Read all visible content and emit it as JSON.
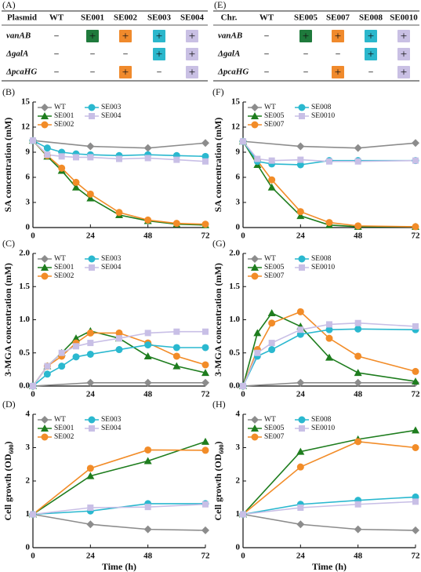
{
  "tables": [
    {
      "label": "(A)",
      "columns": [
        "Plasmid",
        "WT",
        "SE001",
        "SE002",
        "SE003",
        "SE004"
      ],
      "rows": [
        [
          "vanAB",
          "–",
          {
            "text": "+",
            "color": "#1f7a3c"
          },
          {
            "text": "+",
            "color": "#f08a2c"
          },
          {
            "text": "+",
            "color": "#2bb7cc"
          },
          {
            "text": "+",
            "color": "#c9c0e4"
          }
        ],
        [
          "ΔgalA",
          "–",
          "–",
          "–",
          {
            "text": "+",
            "color": "#2bb7cc"
          },
          {
            "text": "+",
            "color": "#c9c0e4"
          }
        ],
        [
          "ΔpcaHG",
          "–",
          "–",
          {
            "text": "+",
            "color": "#f08a2c"
          },
          "–",
          {
            "text": "+",
            "color": "#c9c0e4"
          }
        ]
      ]
    },
    {
      "label": "(E)",
      "columns": [
        "Chr.",
        "WT",
        "SE005",
        "SE007",
        "SE008",
        "SE0010"
      ],
      "rows": [
        [
          "vanAB",
          "–",
          {
            "text": "+",
            "color": "#1f7a3c"
          },
          {
            "text": "+",
            "color": "#f08a2c"
          },
          {
            "text": "+",
            "color": "#2bb7cc"
          },
          {
            "text": "+",
            "color": "#c9c0e4"
          }
        ],
        [
          "ΔgalA",
          "–",
          "–",
          "–",
          {
            "text": "+",
            "color": "#2bb7cc"
          },
          {
            "text": "+",
            "color": "#c9c0e4"
          }
        ],
        [
          "ΔpcaHG",
          "–",
          "–",
          {
            "text": "+",
            "color": "#f08a2c"
          },
          "–",
          {
            "text": "+",
            "color": "#c9c0e4"
          }
        ]
      ]
    }
  ],
  "chart_data": [
    {
      "type": "line",
      "label": "(B)",
      "ylabel": [
        "SA concentration (mM)"
      ],
      "xlim": [
        0,
        72
      ],
      "xticks": [
        0,
        24,
        48,
        72
      ],
      "ylim": [
        0,
        15
      ],
      "yticks": [
        0,
        3,
        6,
        9,
        12,
        15
      ],
      "series": [
        {
          "name": "WT",
          "color": "#8c8c8c",
          "marker": "diamond",
          "x": [
            0,
            24,
            48,
            72
          ],
          "values": [
            10.4,
            9.7,
            9.5,
            10.1
          ]
        },
        {
          "name": "SE001",
          "color": "#1e7d1e",
          "marker": "triangle",
          "x": [
            0,
            6,
            12,
            18,
            24,
            36,
            48,
            60,
            72
          ],
          "values": [
            10.4,
            8.5,
            6.8,
            4.8,
            3.5,
            1.5,
            0.8,
            0.4,
            0.3
          ]
        },
        {
          "name": "SE002",
          "color": "#f28c28",
          "marker": "circle",
          "x": [
            0,
            6,
            12,
            18,
            24,
            36,
            48,
            60,
            72
          ],
          "values": [
            10.4,
            8.6,
            7.1,
            5.4,
            4.0,
            1.8,
            0.9,
            0.5,
            0.4
          ]
        },
        {
          "name": "SE003",
          "color": "#2ab8cf",
          "marker": "circle",
          "x": [
            0,
            6,
            12,
            18,
            24,
            36,
            48,
            60,
            72
          ],
          "values": [
            10.4,
            9.5,
            9.0,
            8.8,
            8.7,
            8.6,
            8.7,
            8.6,
            8.5
          ]
        },
        {
          "name": "SE004",
          "color": "#c8bfe6",
          "marker": "square",
          "x": [
            0,
            6,
            12,
            18,
            24,
            36,
            48,
            60,
            72
          ],
          "values": [
            10.4,
            8.7,
            8.5,
            8.4,
            8.4,
            8.2,
            8.3,
            8.1,
            7.9
          ]
        }
      ]
    },
    {
      "type": "line",
      "label": "(C)",
      "ylabel": [
        "3-MGA concentration (mM)"
      ],
      "xlim": [
        0,
        72
      ],
      "xticks": [
        0,
        24,
        48,
        72
      ],
      "ylim": [
        0,
        2
      ],
      "yticks": [
        {
          "value": 0,
          "label": "0.0"
        },
        0.5,
        {
          "value": 1,
          "label": "1.0"
        },
        1.5,
        {
          "value": 2,
          "label": "2.0"
        }
      ],
      "series": [
        {
          "name": "WT",
          "color": "#8c8c8c",
          "marker": "diamond",
          "x": [
            0,
            24,
            48,
            72
          ],
          "values": [
            0,
            0.05,
            0.05,
            0.05
          ]
        },
        {
          "name": "SE001",
          "color": "#1e7d1e",
          "marker": "triangle",
          "x": [
            0,
            6,
            12,
            18,
            24,
            36,
            48,
            60,
            72
          ],
          "values": [
            0,
            0.3,
            0.5,
            0.72,
            0.83,
            0.72,
            0.45,
            0.3,
            0.2
          ]
        },
        {
          "name": "SE002",
          "color": "#f28c28",
          "marker": "circle",
          "x": [
            0,
            6,
            12,
            18,
            24,
            36,
            48,
            60,
            72
          ],
          "values": [
            0,
            0.3,
            0.45,
            0.65,
            0.8,
            0.8,
            0.65,
            0.45,
            0.32
          ]
        },
        {
          "name": "SE003",
          "color": "#2ab8cf",
          "marker": "circle",
          "x": [
            0,
            6,
            12,
            18,
            24,
            36,
            48,
            60,
            72
          ],
          "values": [
            0,
            0.18,
            0.3,
            0.44,
            0.48,
            0.55,
            0.62,
            0.58,
            0.58
          ]
        },
        {
          "name": "SE004",
          "color": "#c8bfe6",
          "marker": "square",
          "x": [
            0,
            6,
            12,
            18,
            24,
            36,
            48,
            60,
            72
          ],
          "values": [
            0,
            0.3,
            0.5,
            0.6,
            0.65,
            0.72,
            0.8,
            0.82,
            0.82
          ]
        }
      ]
    },
    {
      "type": "line",
      "label": "(D)",
      "ylabel": [
        "Cell growth (OD",
        "600",
        ")"
      ],
      "xlabel": "Time (h)",
      "xlim": [
        0,
        72
      ],
      "xticks": [
        0,
        24,
        48,
        72
      ],
      "ylim": [
        0,
        4
      ],
      "yticks": [
        0,
        1,
        2,
        3,
        4
      ],
      "series": [
        {
          "name": "WT",
          "color": "#8c8c8c",
          "marker": "diamond",
          "x": [
            0,
            24,
            48,
            72
          ],
          "values": [
            1,
            0.7,
            0.55,
            0.52
          ]
        },
        {
          "name": "SE001",
          "color": "#1e7d1e",
          "marker": "triangle",
          "x": [
            0,
            24,
            48,
            72
          ],
          "values": [
            1,
            2.15,
            2.6,
            3.18
          ]
        },
        {
          "name": "SE002",
          "color": "#f28c28",
          "marker": "circle",
          "x": [
            0,
            24,
            48,
            72
          ],
          "values": [
            1,
            2.38,
            2.93,
            2.92
          ]
        },
        {
          "name": "SE003",
          "color": "#2ab8cf",
          "marker": "circle",
          "x": [
            0,
            24,
            48,
            72
          ],
          "values": [
            1,
            1.1,
            1.32,
            1.32
          ]
        },
        {
          "name": "SE004",
          "color": "#c8bfe6",
          "marker": "square",
          "x": [
            0,
            24,
            48,
            72
          ],
          "values": [
            1,
            1.2,
            1.22,
            1.3
          ]
        }
      ]
    },
    {
      "type": "line",
      "label": "(F)",
      "ylabel": [
        "SA concentration (mM)"
      ],
      "xlim": [
        0,
        72
      ],
      "xticks": [
        0,
        24,
        48,
        72
      ],
      "ylim": [
        0,
        15
      ],
      "yticks": [
        0,
        3,
        6,
        9,
        12,
        15
      ],
      "series": [
        {
          "name": "WT",
          "color": "#8c8c8c",
          "marker": "diamond",
          "x": [
            0,
            24,
            48,
            72
          ],
          "values": [
            10.3,
            9.7,
            9.5,
            10.1
          ]
        },
        {
          "name": "SE005",
          "color": "#1e7d1e",
          "marker": "triangle",
          "x": [
            0,
            6,
            12,
            24,
            36,
            48,
            72
          ],
          "values": [
            10.3,
            7.5,
            4.8,
            1.4,
            0.3,
            0.1,
            0.1
          ]
        },
        {
          "name": "SE007",
          "color": "#f28c28",
          "marker": "circle",
          "x": [
            0,
            6,
            12,
            24,
            36,
            48,
            72
          ],
          "values": [
            10.3,
            8.0,
            5.7,
            1.9,
            0.6,
            0.2,
            0.1
          ]
        },
        {
          "name": "SE008",
          "color": "#2ab8cf",
          "marker": "circle",
          "x": [
            0,
            6,
            12,
            24,
            36,
            48,
            72
          ],
          "values": [
            10.3,
            7.9,
            7.6,
            7.5,
            8.0,
            8.0,
            8.0
          ]
        },
        {
          "name": "SE0010",
          "color": "#c8bfe6",
          "marker": "square",
          "x": [
            0,
            6,
            12,
            24,
            36,
            48,
            72
          ],
          "values": [
            10.3,
            8.2,
            8.0,
            8.1,
            7.9,
            7.9,
            8.0
          ]
        }
      ]
    },
    {
      "type": "line",
      "label": "(G)",
      "ylabel": [
        "3-MGA concentration (mM)"
      ],
      "xlim": [
        0,
        72
      ],
      "xticks": [
        0,
        24,
        48,
        72
      ],
      "ylim": [
        0,
        2
      ],
      "yticks": [
        {
          "value": 0,
          "label": "0.0"
        },
        0.5,
        {
          "value": 1,
          "label": "1.0"
        },
        1.5,
        {
          "value": 2,
          "label": "2.0"
        }
      ],
      "series": [
        {
          "name": "WT",
          "color": "#8c8c8c",
          "marker": "diamond",
          "x": [
            0,
            24,
            48,
            72
          ],
          "values": [
            0,
            0.05,
            0.05,
            0.05
          ]
        },
        {
          "name": "SE005",
          "color": "#1e7d1e",
          "marker": "triangle",
          "x": [
            0,
            6,
            12,
            24,
            36,
            48,
            72
          ],
          "values": [
            0,
            0.8,
            1.1,
            0.9,
            0.43,
            0.2,
            0.07
          ]
        },
        {
          "name": "SE007",
          "color": "#f28c28",
          "marker": "circle",
          "x": [
            0,
            6,
            12,
            24,
            36,
            48,
            72
          ],
          "values": [
            0,
            0.55,
            0.95,
            1.12,
            0.72,
            0.45,
            0.22
          ]
        },
        {
          "name": "SE008",
          "color": "#2ab8cf",
          "marker": "circle",
          "x": [
            0,
            6,
            12,
            24,
            36,
            48,
            72
          ],
          "values": [
            0,
            0.45,
            0.55,
            0.78,
            0.85,
            0.86,
            0.85
          ]
        },
        {
          "name": "SE0010",
          "color": "#c8bfe6",
          "marker": "square",
          "x": [
            0,
            6,
            12,
            24,
            36,
            48,
            72
          ],
          "values": [
            0,
            0.5,
            0.65,
            0.85,
            0.93,
            0.95,
            0.9
          ]
        }
      ]
    },
    {
      "type": "line",
      "label": "(H)",
      "ylabel": [
        "Cell growth (OD",
        "600",
        ")"
      ],
      "xlabel": "Time (h)",
      "xlim": [
        0,
        72
      ],
      "xticks": [
        0,
        24,
        48,
        72
      ],
      "ylim": [
        0,
        4
      ],
      "yticks": [
        0,
        1,
        2,
        3,
        4
      ],
      "series": [
        {
          "name": "WT",
          "color": "#8c8c8c",
          "marker": "diamond",
          "x": [
            0,
            24,
            48,
            72
          ],
          "values": [
            1,
            0.7,
            0.55,
            0.52
          ]
        },
        {
          "name": "SE005",
          "color": "#1e7d1e",
          "marker": "triangle",
          "x": [
            0,
            24,
            48,
            72
          ],
          "values": [
            1,
            2.88,
            3.25,
            3.52
          ]
        },
        {
          "name": "SE007",
          "color": "#f28c28",
          "marker": "circle",
          "x": [
            0,
            24,
            48,
            72
          ],
          "values": [
            1,
            2.42,
            3.18,
            3.0
          ]
        },
        {
          "name": "SE008",
          "color": "#2ab8cf",
          "marker": "circle",
          "x": [
            0,
            24,
            48,
            72
          ],
          "values": [
            1,
            1.3,
            1.42,
            1.52
          ]
        },
        {
          "name": "SE0010",
          "color": "#c8bfe6",
          "marker": "square",
          "x": [
            0,
            24,
            48,
            72
          ],
          "values": [
            1,
            1.2,
            1.3,
            1.38
          ]
        }
      ]
    }
  ]
}
